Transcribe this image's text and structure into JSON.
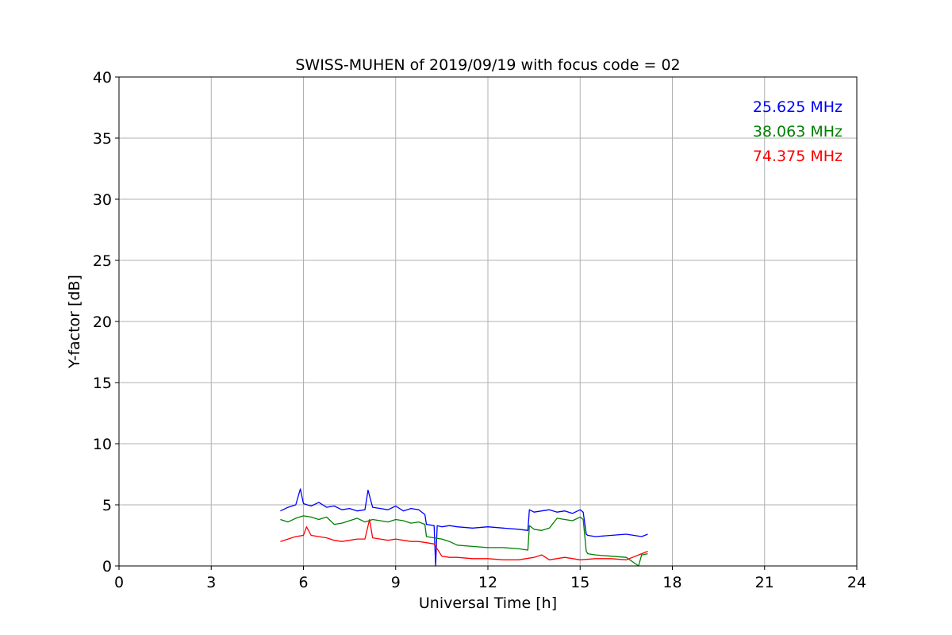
{
  "chart_data": {
    "type": "line",
    "title": "SWISS-MUHEN of 2019/09/19 with focus code = 02",
    "xlabel": "Universal Time [h]",
    "ylabel": "Y-factor [dB]",
    "xlim": [
      0,
      24
    ],
    "ylim": [
      0,
      40
    ],
    "xticks": [
      0,
      3,
      6,
      9,
      12,
      15,
      18,
      21,
      24
    ],
    "yticks": [
      0,
      5,
      10,
      15,
      20,
      25,
      30,
      35,
      40
    ],
    "grid": true,
    "legend_position": "top-right",
    "series": [
      {
        "name": "25.625 MHz",
        "color": "#0000ff",
        "x": [
          5.25,
          5.5,
          5.75,
          5.9,
          6.0,
          6.25,
          6.5,
          6.75,
          7.0,
          7.25,
          7.5,
          7.75,
          8.0,
          8.1,
          8.25,
          8.5,
          8.75,
          9.0,
          9.25,
          9.5,
          9.75,
          9.95,
          10.0,
          10.25,
          10.3,
          10.35,
          10.5,
          10.75,
          11.0,
          11.5,
          12.0,
          12.5,
          13.0,
          13.3,
          13.35,
          13.5,
          13.75,
          14.0,
          14.25,
          14.5,
          14.75,
          15.0,
          15.1,
          15.2,
          15.25,
          15.5,
          16.0,
          16.5,
          17.0,
          17.2
        ],
        "y": [
          4.5,
          4.8,
          5.0,
          6.3,
          5.1,
          4.9,
          5.2,
          4.8,
          4.9,
          4.6,
          4.7,
          4.5,
          4.6,
          6.2,
          4.8,
          4.7,
          4.6,
          4.9,
          4.5,
          4.7,
          4.6,
          4.2,
          3.4,
          3.3,
          0.0,
          3.3,
          3.2,
          3.3,
          3.2,
          3.1,
          3.2,
          3.1,
          3.0,
          2.9,
          4.6,
          4.4,
          4.5,
          4.6,
          4.4,
          4.5,
          4.3,
          4.6,
          4.4,
          2.6,
          2.5,
          2.4,
          2.5,
          2.6,
          2.4,
          2.6
        ]
      },
      {
        "name": "38.063 MHz",
        "color": "#008000",
        "x": [
          5.25,
          5.5,
          5.75,
          6.0,
          6.25,
          6.5,
          6.75,
          7.0,
          7.25,
          7.5,
          7.75,
          8.0,
          8.25,
          8.5,
          8.75,
          9.0,
          9.25,
          9.5,
          9.75,
          9.95,
          10.0,
          10.25,
          10.5,
          10.75,
          11.0,
          11.5,
          12.0,
          12.5,
          13.0,
          13.3,
          13.35,
          13.5,
          13.75,
          14.0,
          14.25,
          14.5,
          14.75,
          15.0,
          15.1,
          15.2,
          15.25,
          15.5,
          16.0,
          16.5,
          16.9,
          17.0,
          17.2
        ],
        "y": [
          3.8,
          3.6,
          3.9,
          4.1,
          4.0,
          3.8,
          4.0,
          3.4,
          3.5,
          3.7,
          3.9,
          3.6,
          3.8,
          3.7,
          3.6,
          3.8,
          3.7,
          3.5,
          3.6,
          3.4,
          2.4,
          2.3,
          2.2,
          2.0,
          1.7,
          1.6,
          1.5,
          1.5,
          1.4,
          1.3,
          3.3,
          3.0,
          2.9,
          3.1,
          3.9,
          3.8,
          3.7,
          4.0,
          3.8,
          1.2,
          1.0,
          0.9,
          0.8,
          0.7,
          0.0,
          0.9,
          1.0
        ]
      },
      {
        "name": "74.375 MHz",
        "color": "#ff0000",
        "x": [
          5.25,
          5.5,
          5.75,
          6.0,
          6.1,
          6.25,
          6.5,
          6.75,
          7.0,
          7.25,
          7.5,
          7.75,
          8.0,
          8.15,
          8.25,
          8.5,
          8.75,
          9.0,
          9.25,
          9.5,
          9.75,
          10.0,
          10.25,
          10.5,
          10.75,
          11.0,
          11.5,
          12.0,
          12.5,
          13.0,
          13.5,
          13.75,
          14.0,
          14.5,
          15.0,
          15.5,
          16.0,
          16.5,
          17.0,
          17.2
        ],
        "y": [
          2.0,
          2.2,
          2.4,
          2.5,
          3.2,
          2.5,
          2.4,
          2.3,
          2.1,
          2.0,
          2.1,
          2.2,
          2.2,
          3.8,
          2.3,
          2.2,
          2.1,
          2.2,
          2.1,
          2.0,
          2.0,
          1.9,
          1.8,
          0.8,
          0.7,
          0.7,
          0.6,
          0.6,
          0.5,
          0.5,
          0.7,
          0.9,
          0.5,
          0.7,
          0.5,
          0.6,
          0.6,
          0.5,
          1.0,
          1.2
        ]
      }
    ]
  }
}
